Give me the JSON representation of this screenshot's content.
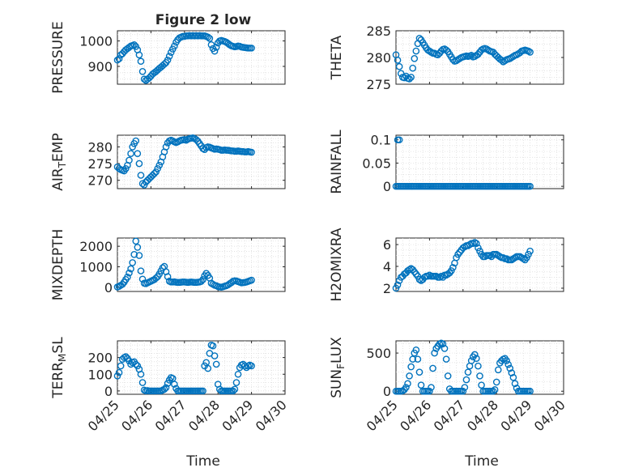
{
  "figure_title": "Figure 2 low",
  "colors": {
    "series": "#0072bd",
    "axis": "#262626",
    "grid": "#d9d9d9",
    "background": "#ffffff"
  },
  "chart_data": [
    {
      "type": "scatter",
      "id": "pressure",
      "ylabel": "PRESSURE",
      "xlim": [
        0,
        5
      ],
      "ylim": [
        830,
        1040
      ],
      "yticks": [
        900,
        1000
      ],
      "x": [
        0.0,
        0.05,
        0.1,
        0.15,
        0.2,
        0.25,
        0.3,
        0.35,
        0.4,
        0.45,
        0.5,
        0.55,
        0.6,
        0.65,
        0.7,
        0.75,
        0.8,
        0.85,
        0.9,
        0.95,
        1.0,
        1.05,
        1.1,
        1.15,
        1.2,
        1.25,
        1.3,
        1.35,
        1.4,
        1.45,
        1.5,
        1.55,
        1.6,
        1.65,
        1.7,
        1.75,
        1.8,
        1.85,
        1.9,
        1.95,
        2.0,
        2.05,
        2.1,
        2.15,
        2.2,
        2.25,
        2.3,
        2.35,
        2.4,
        2.45,
        2.5,
        2.55,
        2.6,
        2.65,
        2.7,
        2.75,
        2.8,
        2.85,
        2.9,
        2.95,
        3.0,
        3.05,
        3.1,
        3.15,
        3.2,
        3.25,
        3.3,
        3.35,
        3.4,
        3.45,
        3.5,
        3.55,
        3.6,
        3.65,
        3.7,
        3.75,
        3.8,
        3.85,
        3.9,
        3.95,
        4.0
      ],
      "y": [
        925,
        930,
        945,
        950,
        958,
        965,
        970,
        975,
        980,
        982,
        985,
        978,
        965,
        945,
        920,
        880,
        850,
        845,
        850,
        855,
        862,
        870,
        875,
        880,
        886,
        892,
        897,
        903,
        909,
        915,
        925,
        940,
        955,
        968,
        980,
        995,
        1005,
        1012,
        1015,
        1018,
        1018,
        1020,
        1020,
        1021,
        1020,
        1021,
        1020,
        1021,
        1020,
        1021,
        1020,
        1020,
        1020,
        1018,
        1015,
        1010,
        985,
        970,
        960,
        975,
        992,
        1000,
        1002,
        1000,
        998,
        995,
        990,
        985,
        981,
        979,
        977,
        978,
        980,
        979,
        976,
        975,
        974,
        973,
        972,
        972,
        972
      ]
    },
    {
      "type": "scatter",
      "id": "theta",
      "ylabel": "THETA",
      "xlim": [
        0,
        5
      ],
      "ylim": [
        275,
        285
      ],
      "yticks": [
        275,
        280,
        285
      ],
      "x": [
        0.0,
        0.05,
        0.1,
        0.15,
        0.2,
        0.25,
        0.3,
        0.35,
        0.4,
        0.45,
        0.5,
        0.55,
        0.6,
        0.65,
        0.7,
        0.75,
        0.8,
        0.85,
        0.9,
        0.95,
        1.0,
        1.05,
        1.1,
        1.15,
        1.2,
        1.25,
        1.3,
        1.35,
        1.4,
        1.45,
        1.5,
        1.55,
        1.6,
        1.65,
        1.7,
        1.75,
        1.8,
        1.85,
        1.9,
        1.95,
        2.0,
        2.05,
        2.1,
        2.15,
        2.2,
        2.25,
        2.3,
        2.35,
        2.4,
        2.45,
        2.5,
        2.55,
        2.6,
        2.65,
        2.7,
        2.75,
        2.8,
        2.85,
        2.9,
        2.95,
        3.0,
        3.05,
        3.1,
        3.15,
        3.2,
        3.25,
        3.3,
        3.35,
        3.4,
        3.45,
        3.5,
        3.55,
        3.6,
        3.65,
        3.7,
        3.75,
        3.8,
        3.85,
        3.9,
        3.95,
        4.0
      ],
      "y": [
        280.5,
        279.5,
        278.3,
        277,
        276.3,
        276.2,
        276.5,
        276.1,
        276,
        276.3,
        278,
        279.8,
        281.2,
        282.6,
        283.6,
        283.3,
        282.8,
        282.3,
        281.8,
        281.4,
        281.2,
        281,
        280.8,
        280.8,
        280.6,
        280.5,
        280.8,
        281.2,
        281.5,
        281.6,
        281.4,
        281.1,
        280.6,
        280.1,
        279.6,
        279.3,
        279.4,
        279.6,
        279.8,
        280,
        280.1,
        280.2,
        280.3,
        280.2,
        280.3,
        280.4,
        280.1,
        280.2,
        280.4,
        280.6,
        281,
        281.4,
        281.6,
        281.7,
        281.6,
        281.4,
        281.2,
        281.1,
        281,
        280.6,
        280.3,
        280,
        279.7,
        279.5,
        279.2,
        279.4,
        279.6,
        279.7,
        279.8,
        280,
        280.2,
        280.4,
        280.5,
        280.7,
        280.9,
        281.2,
        281.3,
        281.4,
        281.3,
        281.2,
        281
      ]
    },
    {
      "type": "scatter",
      "id": "air-temp",
      "ylabel": "AIR_TEMP",
      "xlim": [
        0,
        5
      ],
      "ylim": [
        267.5,
        283.5
      ],
      "yticks": [
        270,
        275,
        280
      ],
      "x": [
        0.0,
        0.05,
        0.1,
        0.15,
        0.2,
        0.25,
        0.3,
        0.35,
        0.4,
        0.45,
        0.5,
        0.55,
        0.6,
        0.65,
        0.7,
        0.75,
        0.8,
        0.85,
        0.9,
        0.95,
        1.0,
        1.05,
        1.1,
        1.15,
        1.2,
        1.25,
        1.3,
        1.35,
        1.4,
        1.45,
        1.5,
        1.55,
        1.6,
        1.65,
        1.7,
        1.75,
        1.8,
        1.85,
        1.9,
        1.95,
        2.0,
        2.05,
        2.1,
        2.15,
        2.2,
        2.25,
        2.3,
        2.35,
        2.4,
        2.45,
        2.5,
        2.55,
        2.6,
        2.65,
        2.7,
        2.75,
        2.8,
        2.85,
        2.9,
        2.95,
        3.0,
        3.05,
        3.1,
        3.15,
        3.2,
        3.25,
        3.3,
        3.35,
        3.4,
        3.45,
        3.5,
        3.55,
        3.6,
        3.65,
        3.7,
        3.75,
        3.8,
        3.85,
        3.9,
        3.95,
        4.0
      ],
      "y": [
        274,
        273.5,
        273.2,
        273,
        272.8,
        273.5,
        274.5,
        276,
        278,
        280,
        281,
        281.8,
        278,
        275,
        271.5,
        269,
        268.6,
        269.5,
        270,
        270.5,
        271,
        271.5,
        272,
        272.5,
        273.5,
        274.5,
        275.5,
        277,
        278.5,
        280,
        281.2,
        281.8,
        282,
        281.8,
        281.5,
        281.3,
        281.5,
        281.8,
        282,
        282.1,
        282.2,
        282,
        282.3,
        282.5,
        282.6,
        282.7,
        282.5,
        282.2,
        281.7,
        281,
        280.3,
        279.5,
        279.2,
        279.8,
        280,
        279.9,
        279.7,
        279.5,
        279.3,
        279.4,
        279.3,
        279.2,
        279,
        279,
        279.1,
        279,
        279,
        278.9,
        278.8,
        278.8,
        278.7,
        278.7,
        278.8,
        278.7,
        278.6,
        278.6,
        278.5,
        278.5,
        278.6,
        278.5,
        278.4
      ]
    },
    {
      "type": "scatter",
      "id": "rainfall",
      "ylabel": "RAINFALL",
      "xlim": [
        0,
        5
      ],
      "ylim": [
        -0.005,
        0.11
      ],
      "yticks": [
        0,
        0.05,
        0.1
      ],
      "x": [
        0.0,
        0.05,
        0.1,
        0.15,
        0.2,
        0.25,
        0.3,
        0.35,
        0.4,
        0.45,
        0.5,
        0.55,
        0.6,
        0.65,
        0.7,
        0.75,
        0.8,
        0.85,
        0.9,
        0.95,
        1.0,
        1.05,
        1.1,
        1.15,
        1.2,
        1.25,
        1.3,
        1.35,
        1.4,
        1.45,
        1.5,
        1.55,
        1.6,
        1.65,
        1.7,
        1.75,
        1.8,
        1.85,
        1.9,
        1.95,
        2.0,
        2.05,
        2.1,
        2.15,
        2.2,
        2.25,
        2.3,
        2.35,
        2.4,
        2.45,
        2.5,
        2.55,
        2.6,
        2.65,
        2.7,
        2.75,
        2.8,
        2.85,
        2.9,
        2.95,
        3.0,
        3.05,
        3.1,
        3.15,
        3.2,
        3.25,
        3.3,
        3.35,
        3.4,
        3.45,
        3.5,
        3.55,
        3.6,
        3.65,
        3.7,
        3.75,
        3.8,
        3.85,
        3.9,
        3.95,
        4.0,
        0.05,
        0.1
      ],
      "y": [
        0,
        0,
        0,
        0,
        0,
        0,
        0,
        0,
        0,
        0,
        0,
        0,
        0,
        0,
        0,
        0,
        0,
        0,
        0,
        0,
        0,
        0,
        0,
        0,
        0,
        0,
        0,
        0,
        0,
        0,
        0,
        0,
        0,
        0,
        0,
        0,
        0,
        0,
        0,
        0,
        0,
        0,
        0,
        0,
        0,
        0,
        0,
        0,
        0,
        0,
        0,
        0,
        0,
        0,
        0,
        0,
        0,
        0,
        0,
        0,
        0,
        0,
        0,
        0,
        0,
        0,
        0,
        0,
        0,
        0,
        0,
        0,
        0,
        0,
        0,
        0,
        0,
        0,
        0,
        0,
        0,
        0.1,
        0.1
      ]
    },
    {
      "type": "scatter",
      "id": "mixdepth",
      "ylabel": "MIXDEPTH",
      "xlim": [
        0,
        5
      ],
      "ylim": [
        -200,
        2400
      ],
      "yticks": [
        0,
        1000,
        2000
      ],
      "x": [
        0.0,
        0.05,
        0.1,
        0.15,
        0.2,
        0.25,
        0.3,
        0.35,
        0.4,
        0.45,
        0.5,
        0.55,
        0.6,
        0.65,
        0.7,
        0.75,
        0.8,
        0.85,
        0.9,
        0.95,
        1.0,
        1.05,
        1.1,
        1.15,
        1.2,
        1.25,
        1.3,
        1.35,
        1.4,
        1.45,
        1.5,
        1.55,
        1.6,
        1.65,
        1.7,
        1.75,
        1.8,
        1.85,
        1.9,
        1.95,
        2.0,
        2.05,
        2.1,
        2.15,
        2.2,
        2.25,
        2.3,
        2.35,
        2.4,
        2.45,
        2.5,
        2.55,
        2.6,
        2.65,
        2.7,
        2.75,
        2.8,
        2.85,
        2.9,
        2.95,
        3.0,
        3.05,
        3.1,
        3.15,
        3.2,
        3.25,
        3.3,
        3.35,
        3.4,
        3.45,
        3.5,
        3.55,
        3.6,
        3.65,
        3.7,
        3.75,
        3.8,
        3.85,
        3.9,
        3.95,
        4.0
      ],
      "y": [
        20,
        50,
        100,
        150,
        250,
        380,
        500,
        700,
        900,
        1200,
        1600,
        2250,
        1950,
        1550,
        800,
        400,
        200,
        180,
        220,
        260,
        300,
        340,
        380,
        450,
        520,
        650,
        800,
        950,
        1020,
        760,
        520,
        300,
        260,
        260,
        270,
        250,
        240,
        240,
        250,
        260,
        260,
        250,
        240,
        250,
        260,
        250,
        240,
        240,
        250,
        260,
        290,
        380,
        560,
        680,
        580,
        450,
        200,
        150,
        100,
        80,
        40,
        20,
        10,
        30,
        60,
        80,
        120,
        180,
        230,
        300,
        320,
        310,
        280,
        250,
        220,
        230,
        240,
        260,
        290,
        320,
        350
      ]
    },
    {
      "type": "scatter",
      "id": "h2omixra",
      "ylabel": "H2OMIXRA",
      "xlim": [
        0,
        5
      ],
      "ylim": [
        1.7,
        6.6
      ],
      "yticks": [
        2,
        4,
        6
      ],
      "x": [
        0.0,
        0.05,
        0.1,
        0.15,
        0.2,
        0.25,
        0.3,
        0.35,
        0.4,
        0.45,
        0.5,
        0.55,
        0.6,
        0.65,
        0.7,
        0.75,
        0.8,
        0.85,
        0.9,
        0.95,
        1.0,
        1.05,
        1.1,
        1.15,
        1.2,
        1.25,
        1.3,
        1.35,
        1.4,
        1.45,
        1.5,
        1.55,
        1.6,
        1.65,
        1.7,
        1.75,
        1.8,
        1.85,
        1.9,
        1.95,
        2.0,
        2.05,
        2.1,
        2.15,
        2.2,
        2.25,
        2.3,
        2.35,
        2.4,
        2.45,
        2.5,
        2.55,
        2.6,
        2.65,
        2.7,
        2.75,
        2.8,
        2.85,
        2.9,
        2.95,
        3.0,
        3.05,
        3.1,
        3.15,
        3.2,
        3.25,
        3.3,
        3.35,
        3.4,
        3.45,
        3.5,
        3.55,
        3.6,
        3.65,
        3.7,
        3.75,
        3.8,
        3.85,
        3.9,
        3.95,
        4.0
      ],
      "y": [
        2,
        2.3,
        2.7,
        3,
        3.1,
        3.3,
        3.4,
        3.6,
        3.7,
        3.8,
        3.7,
        3.5,
        3.3,
        3.1,
        2.8,
        2.7,
        2.8,
        3,
        3.1,
        3.1,
        3.2,
        3.1,
        3.1,
        3.1,
        3.1,
        3,
        3,
        3.1,
        3,
        3.2,
        3.2,
        3.3,
        3.4,
        3.6,
        3.9,
        4.3,
        4.8,
        5.1,
        5.3,
        5.5,
        5.7,
        5.8,
        5.9,
        5.9,
        6,
        6.1,
        6.1,
        6.2,
        6.1,
        5.7,
        5.4,
        5.1,
        4.9,
        4.9,
        5.0,
        5.0,
        5.0,
        4.9,
        5.1,
        5.1,
        5.1,
        5.0,
        4.9,
        4.8,
        4.8,
        4.7,
        4.7,
        4.6,
        4.6,
        4.6,
        4.7,
        4.8,
        4.9,
        4.9,
        4.9,
        4.8,
        4.7,
        4.6,
        4.8,
        5.1,
        5.4
      ]
    },
    {
      "type": "scatter",
      "id": "terr-msl",
      "ylabel": "TERR_MSL",
      "xlim": [
        0,
        5
      ],
      "ylim": [
        -20,
        300
      ],
      "yticks": [
        0,
        100,
        200
      ],
      "x": [
        0.0,
        0.05,
        0.1,
        0.15,
        0.2,
        0.25,
        0.3,
        0.35,
        0.4,
        0.45,
        0.5,
        0.55,
        0.6,
        0.65,
        0.7,
        0.75,
        0.8,
        0.85,
        0.9,
        0.95,
        1.0,
        1.05,
        1.1,
        1.15,
        1.2,
        1.25,
        1.3,
        1.35,
        1.4,
        1.45,
        1.5,
        1.55,
        1.6,
        1.65,
        1.7,
        1.75,
        1.8,
        1.85,
        1.9,
        1.95,
        2.0,
        2.05,
        2.1,
        2.15,
        2.2,
        2.25,
        2.3,
        2.35,
        2.4,
        2.45,
        2.5,
        2.55,
        2.6,
        2.65,
        2.7,
        2.75,
        2.8,
        2.85,
        2.9,
        2.95,
        3.0,
        3.05,
        3.1,
        3.15,
        3.2,
        3.25,
        3.3,
        3.35,
        3.4,
        3.45,
        3.5,
        3.55,
        3.6,
        3.65,
        3.7,
        3.75,
        3.8,
        3.85,
        3.9,
        3.95,
        4.0
      ],
      "y": [
        90,
        110,
        150,
        190,
        200,
        205,
        195,
        180,
        160,
        170,
        175,
        160,
        150,
        130,
        100,
        50,
        5,
        0,
        2,
        0,
        0,
        0,
        0,
        0,
        0,
        0,
        0,
        5,
        10,
        20,
        45,
        65,
        80,
        75,
        40,
        15,
        0,
        0,
        0,
        0,
        0,
        0,
        0,
        0,
        0,
        0,
        0,
        0,
        0,
        0,
        0,
        0,
        150,
        170,
        135,
        225,
        275,
        270,
        210,
        160,
        40,
        10,
        0,
        0,
        0,
        0,
        0,
        0,
        0,
        0,
        10,
        50,
        100,
        140,
        155,
        160,
        150,
        140,
        150,
        155,
        150
      ]
    },
    {
      "type": "scatter",
      "id": "sun-flux",
      "ylabel": "SUN_FLUX",
      "xlim": [
        0,
        5
      ],
      "ylim": [
        -40,
        660
      ],
      "yticks": [
        0,
        500
      ],
      "x": [
        0.0,
        0.05,
        0.1,
        0.15,
        0.2,
        0.25,
        0.3,
        0.35,
        0.4,
        0.45,
        0.5,
        0.55,
        0.6,
        0.65,
        0.7,
        0.75,
        0.8,
        0.85,
        0.9,
        0.95,
        1.0,
        1.05,
        1.1,
        1.15,
        1.2,
        1.25,
        1.3,
        1.35,
        1.4,
        1.45,
        1.5,
        1.55,
        1.6,
        1.65,
        1.7,
        1.75,
        1.8,
        1.85,
        1.9,
        1.95,
        2.0,
        2.05,
        2.1,
        2.15,
        2.2,
        2.25,
        2.3,
        2.35,
        2.4,
        2.45,
        2.5,
        2.55,
        2.6,
        2.65,
        2.7,
        2.75,
        2.8,
        2.85,
        2.9,
        2.95,
        3.0,
        3.05,
        3.1,
        3.15,
        3.2,
        3.25,
        3.3,
        3.35,
        3.4,
        3.45,
        3.5,
        3.55,
        3.6,
        3.65,
        3.7,
        3.75,
        3.8,
        3.85,
        3.9,
        3.95,
        4.0
      ],
      "y": [
        0,
        0,
        0,
        0,
        5,
        20,
        50,
        100,
        200,
        320,
        420,
        500,
        540,
        420,
        250,
        80,
        0,
        0,
        0,
        0,
        0,
        50,
        300,
        500,
        560,
        590,
        620,
        630,
        620,
        560,
        420,
        200,
        30,
        0,
        0,
        0,
        0,
        0,
        0,
        0,
        0,
        50,
        150,
        250,
        330,
        400,
        450,
        480,
        430,
        330,
        200,
        80,
        0,
        0,
        0,
        0,
        0,
        0,
        0,
        20,
        120,
        280,
        370,
        400,
        420,
        430,
        400,
        350,
        300,
        240,
        180,
        100,
        40,
        0,
        0,
        0,
        0,
        0,
        0,
        0,
        0
      ]
    }
  ],
  "xaxis": {
    "ticks": [
      0,
      1,
      2,
      3,
      4,
      5
    ],
    "tick_labels": [
      "04/25",
      "04/26",
      "04/27",
      "04/28",
      "04/29",
      "04/30"
    ],
    "xlabel": "Time"
  }
}
